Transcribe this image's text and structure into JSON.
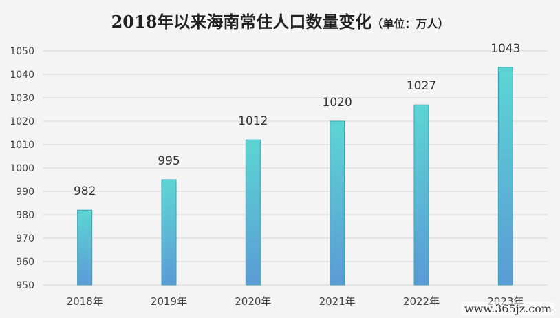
{
  "page": {
    "title": "2018年以来海南常住人口数量变化",
    "unit_note": "（单位：万人）",
    "watermark": "www.365jz.com"
  },
  "colors": {
    "background": "#f4f4f4",
    "grid": "#d9d9d9",
    "bar_top": "#5dd5d3",
    "bar_bottom": "#5a9bd6",
    "bar_stroke": "#3a9fb0"
  },
  "chart_data": {
    "type": "bar",
    "title": "2018年以来海南常住人口数量变化",
    "subtitle": "（单位：万人）",
    "categories": [
      "2018年",
      "2019年",
      "2020年",
      "2021年",
      "2022年",
      "2023年"
    ],
    "values": [
      982,
      995,
      1012,
      1020,
      1027,
      1043
    ],
    "data_labels": [
      "982",
      "995",
      "1012",
      "1020",
      "1027",
      "1043"
    ],
    "ylim": [
      950,
      1050
    ],
    "yticks": [
      950,
      960,
      970,
      980,
      990,
      1000,
      1010,
      1020,
      1030,
      1040,
      1050
    ],
    "grid": true,
    "legend": "none"
  }
}
